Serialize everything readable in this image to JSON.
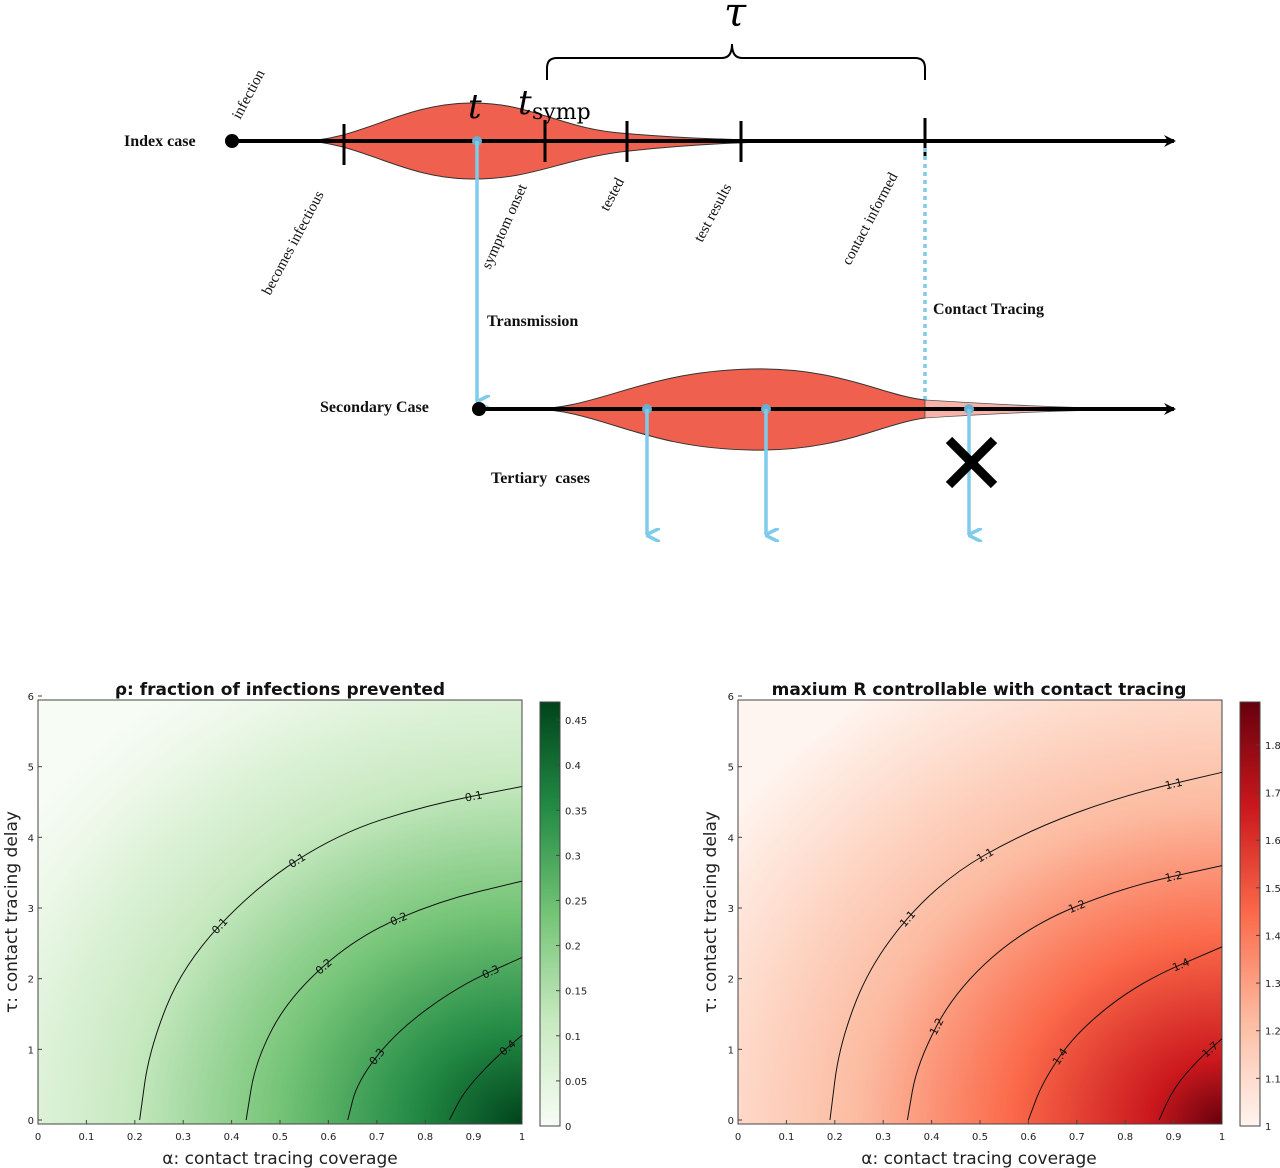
{
  "timeline": {
    "index_label": "Index case",
    "secondary_label": "Secondary Case",
    "tertiary_label": "Tertiary  cases",
    "transmission_label": "Transmission",
    "contact_tracing_label": "Contact Tracing",
    "tau_symbol": "τ",
    "t_symbol": "t",
    "tsymp_symbol": "t",
    "tsymp_subscript": "symp",
    "events": {
      "infection": "infection",
      "infectious": "becomes infectious",
      "onset": "symptom onset",
      "tested": "tested",
      "results": "test results",
      "informed": "contact informed"
    },
    "colors": {
      "infectiousness": "#f0604f",
      "arrow": "#7fcbeb",
      "axis": "#000000"
    }
  },
  "chart_data": [
    {
      "type": "heatmap",
      "title": "ρ: fraction of infections prevented",
      "xlabel": "α: contact tracing coverage",
      "ylabel": "τ: contact tracing delay",
      "xlim": [
        0,
        1
      ],
      "ylim": [
        0,
        6
      ],
      "xticks": [
        "0",
        "0.1",
        "0.2",
        "0.3",
        "0.4",
        "0.5",
        "0.6",
        "0.7",
        "0.8",
        "0.9",
        "1"
      ],
      "yticks": [
        "0",
        "1",
        "2",
        "3",
        "4",
        "5",
        "6"
      ],
      "colorbar": {
        "range": [
          0,
          0.47
        ],
        "ticks": [
          "0",
          "0.05",
          "0.1",
          "0.15",
          "0.2",
          "0.25",
          "0.3",
          "0.35",
          "0.4",
          "0.45"
        ],
        "low_color": "#f7fcf5",
        "high_color": "#00441b"
      },
      "contours": [
        {
          "level": 0.1,
          "labels": [
            "0.1",
            "0.1",
            "0.1"
          ],
          "points": [
            [
              0.21,
              0
            ],
            [
              0.23,
              1.0
            ],
            [
              0.3,
              2.2
            ],
            [
              0.45,
              3.3
            ],
            [
              0.62,
              4.05
            ],
            [
              0.8,
              4.45
            ],
            [
              1.0,
              4.72
            ]
          ]
        },
        {
          "level": 0.2,
          "labels": [
            "0.2",
            "0.2"
          ],
          "points": [
            [
              0.43,
              0
            ],
            [
              0.45,
              0.85
            ],
            [
              0.52,
              1.75
            ],
            [
              0.66,
              2.6
            ],
            [
              0.83,
              3.1
            ],
            [
              1.0,
              3.38
            ]
          ]
        },
        {
          "level": 0.3,
          "labels": [
            "0.3",
            "0.3"
          ],
          "points": [
            [
              0.64,
              0
            ],
            [
              0.66,
              0.55
            ],
            [
              0.74,
              1.25
            ],
            [
              0.87,
              1.9
            ],
            [
              1.0,
              2.3
            ]
          ]
        },
        {
          "level": 0.4,
          "labels": [
            "0.4"
          ],
          "points": [
            [
              0.85,
              0
            ],
            [
              0.88,
              0.4
            ],
            [
              0.94,
              0.85
            ],
            [
              1.0,
              1.2
            ]
          ]
        }
      ]
    },
    {
      "type": "heatmap",
      "title": "maxium R controllable with contact tracing",
      "xlabel": "α: contact tracing coverage",
      "ylabel": "τ: contact tracing delay",
      "xlim": [
        0,
        1
      ],
      "ylim": [
        0,
        6
      ],
      "xticks": [
        "0",
        "0.1",
        "0.2",
        "0.3",
        "0.4",
        "0.5",
        "0.6",
        "0.7",
        "0.8",
        "0.9",
        "1"
      ],
      "yticks": [
        "0",
        "1",
        "2",
        "3",
        "4",
        "5",
        "6"
      ],
      "colorbar": {
        "range": [
          1,
          1.89
        ],
        "ticks": [
          "1",
          "1.1",
          "1.2",
          "1.3",
          "1.4",
          "1.5",
          "1.6",
          "1.7",
          "1.8"
        ],
        "low_color": "#fff5f0",
        "high_color": "#67000d"
      },
      "contours": [
        {
          "level": 1.1,
          "labels": [
            "1.1",
            "1.1",
            "1.1"
          ],
          "points": [
            [
              0.19,
              0
            ],
            [
              0.21,
              1.1
            ],
            [
              0.28,
              2.3
            ],
            [
              0.42,
              3.4
            ],
            [
              0.6,
              4.1
            ],
            [
              0.8,
              4.6
            ],
            [
              1.0,
              4.92
            ]
          ]
        },
        {
          "level": 1.2,
          "labels": [
            "1.2",
            "1.2",
            "1.2"
          ],
          "points": [
            [
              0.35,
              0
            ],
            [
              0.37,
              0.8
            ],
            [
              0.45,
              1.85
            ],
            [
              0.6,
              2.75
            ],
            [
              0.8,
              3.3
            ],
            [
              1.0,
              3.6
            ]
          ]
        },
        {
          "level": 1.4,
          "labels": [
            "1.4",
            "1.4"
          ],
          "points": [
            [
              0.6,
              0
            ],
            [
              0.63,
              0.55
            ],
            [
              0.7,
              1.25
            ],
            [
              0.83,
              1.95
            ],
            [
              1.0,
              2.45
            ]
          ]
        },
        {
          "level": 1.7,
          "labels": [
            "1.7"
          ],
          "points": [
            [
              0.87,
              0
            ],
            [
              0.9,
              0.45
            ],
            [
              0.95,
              0.85
            ],
            [
              1.0,
              1.15
            ]
          ]
        }
      ]
    }
  ]
}
